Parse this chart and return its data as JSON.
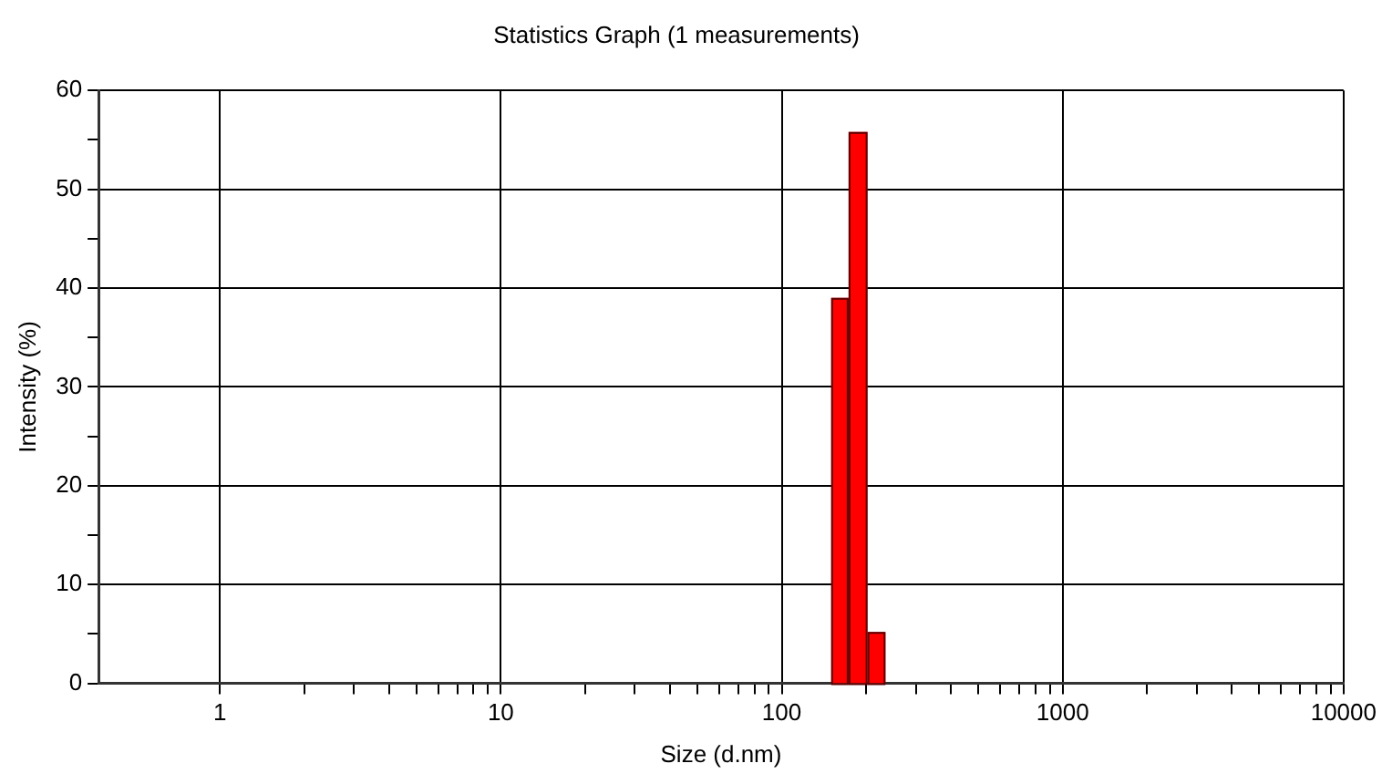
{
  "chart_data": {
    "type": "histogram",
    "title": "Statistics Graph (1 measurements)",
    "xlabel": "Size (d.nm)",
    "ylabel": "Intensity (%)",
    "bins": [
      150,
      173,
      202,
      234
    ],
    "values": [
      39,
      55.8,
      5.2
    ],
    "color": "#ff0000",
    "log": "x",
    "xlim": [
      0.37,
      10000
    ],
    "xticks": [
      {
        "value": 1,
        "label": "1"
      },
      {
        "value": 2,
        "label": null
      },
      {
        "value": 3,
        "label": null
      },
      {
        "value": 4,
        "label": null
      },
      {
        "value": 5,
        "label": null
      },
      {
        "value": 6,
        "label": null
      },
      {
        "value": 7,
        "label": null
      },
      {
        "value": 8,
        "label": null
      },
      {
        "value": 9,
        "label": null
      },
      {
        "value": 10,
        "label": "10"
      },
      {
        "value": 20,
        "label": null
      },
      {
        "value": 30,
        "label": null
      },
      {
        "value": 40,
        "label": null
      },
      {
        "value": 50,
        "label": null
      },
      {
        "value": 60,
        "label": null
      },
      {
        "value": 70,
        "label": null
      },
      {
        "value": 80,
        "label": null
      },
      {
        "value": 90,
        "label": null
      },
      {
        "value": 100,
        "label": "100"
      },
      {
        "value": 200,
        "label": null
      },
      {
        "value": 300,
        "label": null
      },
      {
        "value": 400,
        "label": null
      },
      {
        "value": 500,
        "label": null
      },
      {
        "value": 600,
        "label": null
      },
      {
        "value": 700,
        "label": null
      },
      {
        "value": 800,
        "label": null
      },
      {
        "value": 900,
        "label": null
      },
      {
        "value": 1000,
        "label": "1000"
      },
      {
        "value": 2000,
        "label": null
      },
      {
        "value": 3000,
        "label": null
      },
      {
        "value": 4000,
        "label": null
      },
      {
        "value": 5000,
        "label": null
      },
      {
        "value": 6000,
        "label": null
      },
      {
        "value": 7000,
        "label": null
      },
      {
        "value": 8000,
        "label": null
      },
      {
        "value": 9000,
        "label": null
      },
      {
        "value": 10000,
        "label": "10000"
      }
    ],
    "ylim": [
      0,
      60
    ],
    "yticks": [
      0,
      {
        "value": 5,
        "label": null
      },
      10,
      {
        "value": 15,
        "label": null
      },
      20,
      {
        "value": 25,
        "label": null
      },
      30,
      {
        "value": 35,
        "label": null
      },
      40,
      {
        "value": 45,
        "label": null
      },
      50,
      {
        "value": 55,
        "label": null
      },
      60
    ],
    "grid": true
  }
}
